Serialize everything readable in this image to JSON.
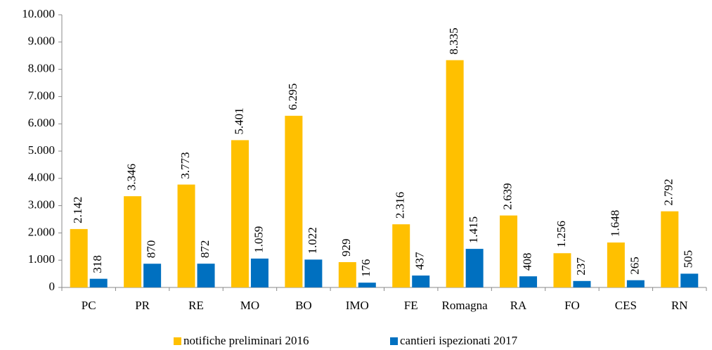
{
  "chart_data": {
    "type": "bar",
    "categories": [
      "PC",
      "PR",
      "RE",
      "MO",
      "BO",
      "IMO",
      "FE",
      "Romagna",
      "RA",
      "FO",
      "CES",
      "RN"
    ],
    "series": [
      {
        "name": "notifiche preliminari 2016",
        "color": "#FFC000",
        "values": [
          2142,
          3346,
          3773,
          5401,
          6295,
          929,
          2316,
          8335,
          2639,
          1256,
          1648,
          2792
        ],
        "value_labels": [
          "2.142",
          "3.346",
          "3.773",
          "5.401",
          "6.295",
          "929",
          "2.316",
          "8.335",
          "2.639",
          "1.256",
          "1.648",
          "2.792"
        ]
      },
      {
        "name": "cantieri ispezionati 2017",
        "color": "#0070C0",
        "values": [
          318,
          870,
          872,
          1059,
          1022,
          176,
          437,
          1415,
          408,
          237,
          265,
          505
        ],
        "value_labels": [
          "318",
          "870",
          "872",
          "1.059",
          "1.022",
          "176",
          "437",
          "1.415",
          "408",
          "237",
          "265",
          "505"
        ]
      }
    ],
    "ylim": [
      0,
      10000
    ],
    "yticks": [
      0,
      {
        "value": 1000,
        "label": "1.000"
      },
      {
        "value": 2000,
        "label": "2.000"
      },
      {
        "value": 3000,
        "label": "3.000"
      },
      {
        "value": 4000,
        "label": "4.000"
      },
      {
        "value": 5000,
        "label": "5.000"
      },
      {
        "value": 6000,
        "label": "6.000"
      },
      {
        "value": 7000,
        "label": "7.000"
      },
      {
        "value": 8000,
        "label": "8.000"
      },
      {
        "value": 9000,
        "label": "9.000"
      },
      {
        "value": 10000,
        "label": "10.000"
      }
    ],
    "legend": "bottom"
  }
}
